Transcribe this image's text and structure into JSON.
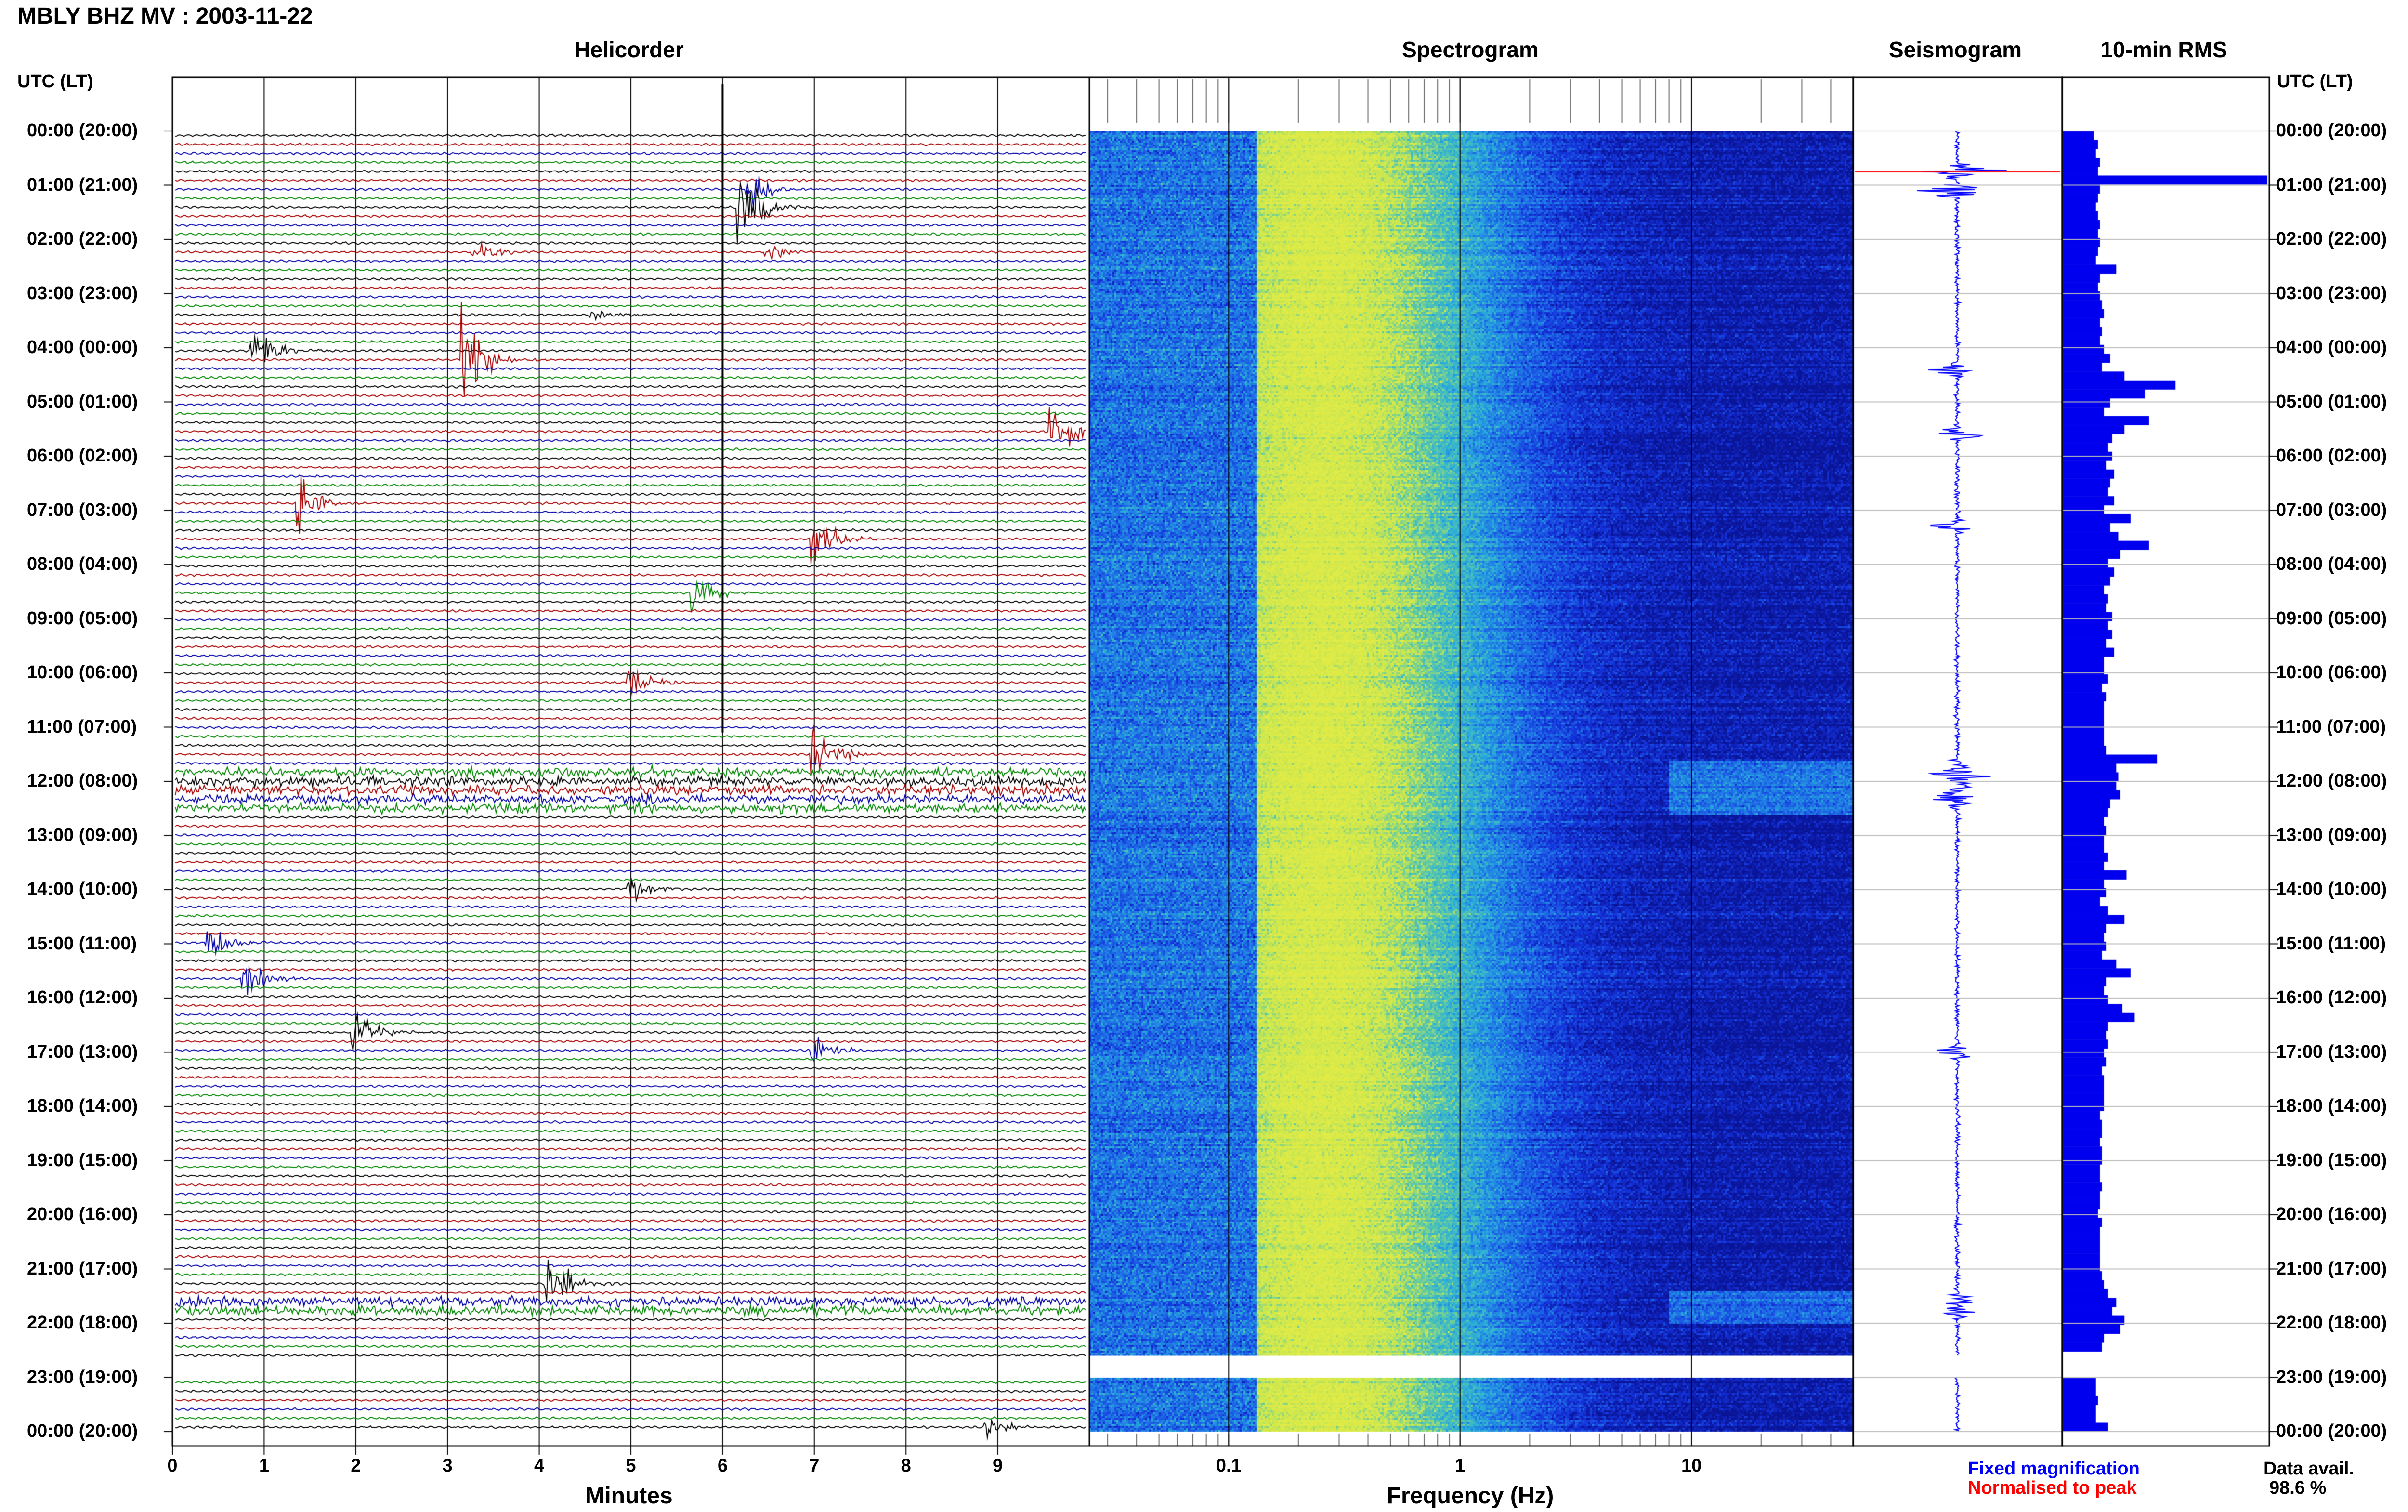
{
  "title": "MBLY BHZ MV : 2003-11-22",
  "panels": {
    "helicorder": "Helicorder",
    "spectrogram": "Spectrogram",
    "seismogram": "Seismogram",
    "rms": "10-min RMS"
  },
  "axis_labels": {
    "utc_left": "UTC (LT)",
    "utc_right": "UTC (LT)",
    "minutes": "Minutes",
    "frequency": "Frequency (Hz)"
  },
  "legend": {
    "fixed": "Fixed magnification",
    "normalised": "Normalised to peak",
    "fixed_color": "#0000ff",
    "normalised_color": "#ff0000"
  },
  "data_availability": {
    "label": "Data avail.",
    "value": "98.6 %"
  },
  "colors": {
    "trace_cycle": [
      "#000000",
      "#aa0000",
      "#0000aa",
      "#008800"
    ],
    "rms_bar": "#0000ee",
    "spectrogram_low": "#0a1ec8",
    "spectrogram_high": "#d8e84a"
  },
  "chart_data": [
    {
      "type": "line",
      "name": "helicorder",
      "title": "Helicorder",
      "xlabel": "Minutes",
      "xlim": [
        0,
        10
      ],
      "x_ticks": [
        "0",
        "1",
        "2",
        "3",
        "4",
        "5",
        "6",
        "7",
        "8",
        "9"
      ],
      "y_tick_labels": [
        "00:00 (20:00)",
        "01:00 (21:00)",
        "02:00 (22:00)",
        "03:00 (23:00)",
        "04:00 (00:00)",
        "05:00 (01:00)",
        "06:00 (02:00)",
        "07:00 (03:00)",
        "08:00 (04:00)",
        "09:00 (05:00)",
        "10:00 (06:00)",
        "11:00 (07:00)",
        "12:00 (08:00)",
        "13:00 (09:00)",
        "14:00 (10:00)",
        "15:00 (11:00)",
        "16:00 (12:00)",
        "17:00 (13:00)",
        "18:00 (14:00)",
        "19:00 (15:00)",
        "20:00 (16:00)",
        "21:00 (17:00)",
        "22:00 (18:00)",
        "23:00 (19:00)",
        "00:00 (20:00)"
      ],
      "rows": 145,
      "row_duration_minutes": 10,
      "data_gap_hours": [
        22.6,
        23.0
      ],
      "events": [
        {
          "hour": 1.0,
          "minute": 6.3,
          "amp": 0.9
        },
        {
          "hour": 1.4,
          "minute": 6.2,
          "amp": 1.8
        },
        {
          "hour": 2.3,
          "minute": 3.3,
          "amp": 0.6
        },
        {
          "hour": 2.3,
          "minute": 6.5,
          "amp": 0.5
        },
        {
          "hour": 3.4,
          "minute": 4.6,
          "amp": 0.3
        },
        {
          "hour": 4.1,
          "minute": 0.9,
          "amp": 1.2
        },
        {
          "hour": 4.2,
          "minute": 3.2,
          "amp": 2.0
        },
        {
          "hour": 5.5,
          "minute": 9.6,
          "amp": 1.6
        },
        {
          "hour": 6.9,
          "minute": 1.4,
          "amp": 1.2
        },
        {
          "hour": 7.5,
          "minute": 7.0,
          "amp": 1.3
        },
        {
          "hour": 8.5,
          "minute": 5.7,
          "amp": 0.9
        },
        {
          "hour": 10.1,
          "minute": 5.0,
          "amp": 0.8
        },
        {
          "hour": 11.5,
          "minute": 7.0,
          "amp": 1.4
        },
        {
          "hour": 14.0,
          "minute": 5.0,
          "amp": 0.7
        },
        {
          "hour": 14.9,
          "minute": 0.4,
          "amp": 1.0
        },
        {
          "hour": 15.6,
          "minute": 0.8,
          "amp": 1.0
        },
        {
          "hour": 16.7,
          "minute": 2.0,
          "amp": 1.2
        },
        {
          "hour": 17.0,
          "minute": 7.0,
          "amp": 0.9
        },
        {
          "hour": 21.3,
          "minute": 4.1,
          "amp": 1.6
        },
        {
          "hour": 23.9,
          "minute": 8.9,
          "amp": 0.5
        }
      ],
      "noisy_hours": [
        [
          11.6,
          12.5
        ],
        [
          21.5,
          21.7
        ]
      ]
    },
    {
      "type": "heatmap",
      "name": "spectrogram",
      "title": "Spectrogram",
      "xlabel": "Frequency (Hz)",
      "xscale": "log",
      "xlim": [
        0.025,
        50
      ],
      "x_tick_labels": [
        "0.1",
        "1",
        "10"
      ],
      "peak_frequency_hz": 0.25,
      "data_gap_hours": [
        22.6,
        23.0
      ],
      "high_frequency_burst_hours": [
        [
          11.6,
          12.6
        ],
        [
          21.4,
          22.0
        ]
      ]
    },
    {
      "type": "line",
      "name": "seismogram",
      "title": "Seismogram",
      "series": [
        {
          "name": "Fixed magnification",
          "color": "#0000ff"
        },
        {
          "name": "Normalised to peak",
          "color": "#ff0000"
        }
      ],
      "bursts": [
        {
          "hour": 0.75,
          "amp": 0.9
        },
        {
          "hour": 1.1,
          "amp": 0.6
        },
        {
          "hour": 4.4,
          "amp": 0.6
        },
        {
          "hour": 5.6,
          "amp": 0.7
        },
        {
          "hour": 7.3,
          "amp": 0.5
        },
        {
          "hour": 11.9,
          "amp": 0.45
        },
        {
          "hour": 12.3,
          "amp": 0.35
        },
        {
          "hour": 17.0,
          "amp": 0.45
        },
        {
          "hour": 21.6,
          "amp": 0.35
        },
        {
          "hour": 21.8,
          "amp": 0.3
        }
      ]
    },
    {
      "type": "bar",
      "name": "rms",
      "title": "10-min RMS",
      "orientation": "horizontal",
      "interval_minutes": 10,
      "values": [
        0.15,
        0.17,
        0.16,
        0.18,
        0.17,
        1.0,
        0.18,
        0.17,
        0.16,
        0.17,
        0.18,
        0.17,
        0.18,
        0.17,
        0.16,
        0.26,
        0.18,
        0.17,
        0.18,
        0.19,
        0.2,
        0.18,
        0.19,
        0.18,
        0.2,
        0.23,
        0.19,
        0.3,
        0.55,
        0.4,
        0.23,
        0.2,
        0.42,
        0.3,
        0.24,
        0.22,
        0.24,
        0.21,
        0.25,
        0.23,
        0.22,
        0.25,
        0.2,
        0.33,
        0.23,
        0.27,
        0.42,
        0.28,
        0.22,
        0.25,
        0.23,
        0.2,
        0.22,
        0.21,
        0.24,
        0.22,
        0.24,
        0.21,
        0.25,
        0.2,
        0.2,
        0.22,
        0.19,
        0.21,
        0.2,
        0.2,
        0.2,
        0.2,
        0.2,
        0.21,
        0.46,
        0.26,
        0.27,
        0.26,
        0.28,
        0.23,
        0.22,
        0.2,
        0.21,
        0.2,
        0.2,
        0.22,
        0.2,
        0.31,
        0.2,
        0.21,
        0.18,
        0.22,
        0.3,
        0.21,
        0.2,
        0.21,
        0.19,
        0.26,
        0.33,
        0.21,
        0.2,
        0.22,
        0.29,
        0.35,
        0.22,
        0.21,
        0.22,
        0.2,
        0.21,
        0.19,
        0.2,
        0.2,
        0.2,
        0.2,
        0.18,
        0.19,
        0.19,
        0.18,
        0.19,
        0.19,
        0.18,
        0.18,
        0.19,
        0.18,
        0.18,
        0.17,
        0.19,
        0.18,
        0.18,
        0.18,
        0.18,
        0.18,
        0.19,
        0.2,
        0.22,
        0.26,
        0.24,
        0.3,
        0.28,
        0.2,
        0.19,
        0,
        0,
        0,
        0.16,
        0.16,
        0.17,
        0.16,
        0.16,
        0.22
      ]
    }
  ]
}
